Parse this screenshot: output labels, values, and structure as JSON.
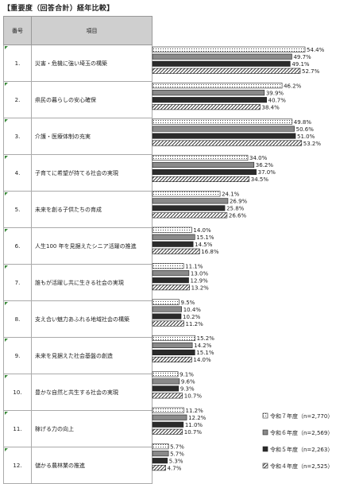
{
  "header": {
    "title": "【重要度（回答合計）経年比較】"
  },
  "table": {
    "col_num": "番号",
    "col_item": "項目"
  },
  "rows": [
    {
      "num": "1.",
      "label": "災害・危機に強い埼玉の構築"
    },
    {
      "num": "2.",
      "label": "県民の暮らしの安心確保"
    },
    {
      "num": "3.",
      "label": "介護・医療体制の充実"
    },
    {
      "num": "4.",
      "label": "子育てに希望が持てる社会の実現"
    },
    {
      "num": "5.",
      "label": "未来を創る子供たちの育成"
    },
    {
      "num": "6.",
      "label": "人生100 年を見据えたシニア活躍の推進"
    },
    {
      "num": "7.",
      "label": "誰もが活躍し共に生きる社会の実現"
    },
    {
      "num": "8.",
      "label": "支え合い魅力あふれる地域社会の構築"
    },
    {
      "num": "9.",
      "label": "未来を見据えた社会基盤の創造"
    },
    {
      "num": "10.",
      "label": "豊かな自然と共生する社会の実現"
    },
    {
      "num": "11.",
      "label": "稼げる力の向上"
    },
    {
      "num": "12.",
      "label": "儲かる農林業の推進"
    }
  ],
  "chart_data": {
    "type": "bar",
    "orientation": "horizontal",
    "categories": [
      "1.",
      "2.",
      "3.",
      "4.",
      "5.",
      "6.",
      "7.",
      "8.",
      "9.",
      "10.",
      "11.",
      "12."
    ],
    "series": [
      {
        "name": "令和７年度（n=2,770）",
        "pattern": "dots",
        "values": [
          54.4,
          46.2,
          49.8,
          34.0,
          24.1,
          14.0,
          11.1,
          9.5,
          15.2,
          9.1,
          11.2,
          5.7
        ]
      },
      {
        "name": "令和６年度（n=2,569）",
        "pattern": "gray",
        "values": [
          49.7,
          39.9,
          50.6,
          36.2,
          26.9,
          15.1,
          13.0,
          10.4,
          14.2,
          9.6,
          12.2,
          5.7
        ]
      },
      {
        "name": "令和５年度（n=2,263）",
        "pattern": "dark",
        "values": [
          49.1,
          40.7,
          51.0,
          37.0,
          25.8,
          14.5,
          12.9,
          10.2,
          15.1,
          9.3,
          11.0,
          5.3
        ]
      },
      {
        "name": "令和４年度（n=2,525）",
        "pattern": "hatch",
        "values": [
          52.7,
          38.4,
          53.2,
          34.5,
          26.6,
          16.8,
          13.2,
          11.2,
          14.0,
          10.7,
          10.7,
          4.7
        ]
      }
    ],
    "value_suffix": "%",
    "legend_position": "bottom-right"
  }
}
